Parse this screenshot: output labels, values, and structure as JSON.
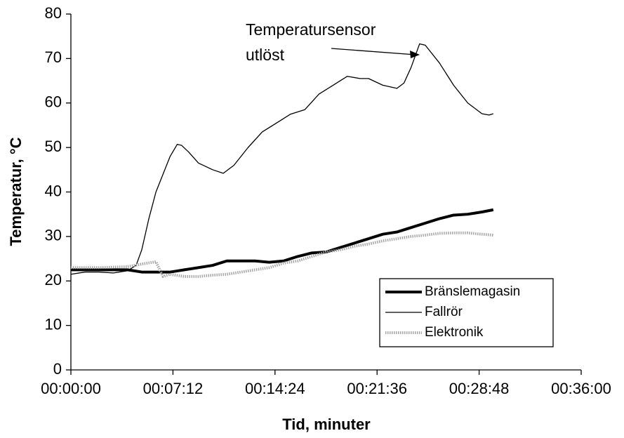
{
  "chart_data": {
    "type": "line",
    "x_label": "Tid, minuter",
    "y_label": "Temperatur, °C",
    "annotation": [
      "Temperatursensor",
      "utlöst"
    ],
    "xlim": [
      0,
      36
    ],
    "ylim": [
      0,
      80
    ],
    "xticks": [
      {
        "value": 0,
        "label": "00:00:00"
      },
      {
        "value": 7.2,
        "label": "00:07:12"
      },
      {
        "value": 14.4,
        "label": "00:14:24"
      },
      {
        "value": 21.6,
        "label": "00:21:36"
      },
      {
        "value": 28.8,
        "label": "00:28:48"
      },
      {
        "value": 36,
        "label": "00:36:00"
      }
    ],
    "yticks": [
      0,
      10,
      20,
      30,
      40,
      50,
      60,
      70,
      80
    ],
    "grid": false,
    "legend": "lower right",
    "series": [
      {
        "name": "Bränslemagasin",
        "color": "#000000",
        "style": "thick",
        "x": [
          0,
          2,
          4,
          5,
          6,
          7,
          8,
          9,
          10,
          11,
          12,
          13,
          14,
          15,
          16,
          17,
          18,
          19,
          20,
          21,
          22,
          23,
          24,
          25,
          26,
          27,
          28,
          29,
          29.8
        ],
        "values": [
          22.5,
          22.5,
          22.5,
          22,
          22,
          22,
          22.5,
          23,
          23.5,
          24.5,
          24.5,
          24.5,
          24.2,
          24.5,
          25.5,
          26.3,
          26.5,
          27.5,
          28.5,
          29.5,
          30.5,
          31,
          32,
          33,
          34,
          34.8,
          35,
          35.5,
          36
        ]
      },
      {
        "name": "Fallrör",
        "color": "#000000",
        "style": "thin",
        "x": [
          0,
          1,
          2,
          3,
          4,
          4.6,
          5,
          5.5,
          6,
          6.5,
          7,
          7.5,
          7.8,
          8.3,
          9,
          10,
          10.75,
          11.5,
          12.5,
          13.5,
          14.5,
          15.5,
          16.5,
          17.5,
          18.5,
          19.5,
          20.4,
          21,
          22,
          23,
          23.5,
          24,
          24.6,
          25,
          26,
          27,
          28,
          29,
          29.5,
          29.8
        ],
        "values": [
          21.5,
          22,
          22,
          21.8,
          22.3,
          23.5,
          27,
          34,
          40,
          44,
          48,
          50.7,
          50.5,
          49,
          46.5,
          45,
          44.2,
          46,
          50,
          53.5,
          55.5,
          57.5,
          58.5,
          62,
          64,
          66,
          65.5,
          65.5,
          64,
          63.3,
          64.5,
          68,
          73.3,
          73,
          69,
          64,
          60,
          57.6,
          57.3,
          57.6
        ]
      },
      {
        "name": "Elektronik",
        "color": "#a6a6a6",
        "style": "dotted",
        "x": [
          0,
          2,
          4,
          5,
          6,
          6.5,
          7,
          8,
          9,
          10,
          11,
          12,
          13,
          14,
          15,
          16,
          17,
          18,
          19,
          20,
          21,
          22,
          23,
          24,
          25,
          26,
          27,
          28,
          29,
          29.8
        ],
        "values": [
          23,
          23,
          23.2,
          23.8,
          24.3,
          21,
          21.5,
          21,
          21,
          21.3,
          21.5,
          22,
          22.5,
          23,
          24,
          24.5,
          25.5,
          26.5,
          27,
          27.8,
          28.3,
          29,
          29.5,
          30,
          30.3,
          30.7,
          30.8,
          30.8,
          30.5,
          30.3
        ]
      }
    ]
  }
}
